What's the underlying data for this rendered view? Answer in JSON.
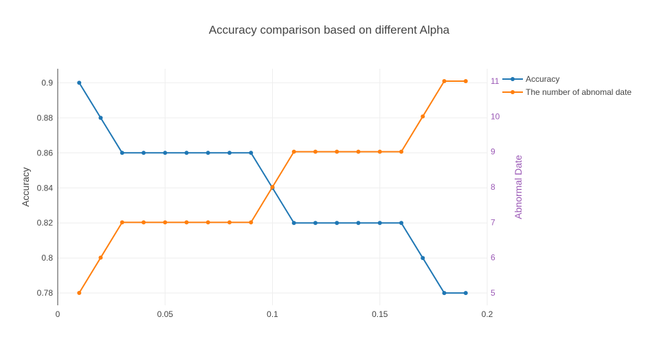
{
  "chart_data": {
    "type": "line",
    "title": "Accuracy comparison based on different Alpha",
    "xlabel": "",
    "xlim": [
      0,
      0.2
    ],
    "x_ticks": [
      "0",
      "0.05",
      "0.1",
      "0.15",
      "0.2"
    ],
    "x": [
      0.01,
      0.02,
      0.03,
      0.04,
      0.05,
      0.06,
      0.07,
      0.08,
      0.09,
      0.1,
      0.11,
      0.12,
      0.13,
      0.14,
      0.15,
      0.16,
      0.17,
      0.18,
      0.19
    ],
    "y_left": {
      "label": "Accuracy",
      "lim": [
        0.773,
        0.908
      ],
      "ticks": [
        "0.78",
        "0.8",
        "0.82",
        "0.84",
        "0.86",
        "0.88",
        "0.9"
      ],
      "tick_values": [
        0.78,
        0.8,
        0.82,
        0.84,
        0.86,
        0.88,
        0.9
      ],
      "color": "#444444"
    },
    "y_right": {
      "label": "Abnormal Date",
      "lim": [
        4.65,
        11.35
      ],
      "ticks": [
        "5",
        "6",
        "7",
        "8",
        "9",
        "10",
        "11"
      ],
      "tick_values": [
        5,
        6,
        7,
        8,
        9,
        10,
        11
      ],
      "color": "#9b59b6"
    },
    "series": [
      {
        "name": "Accuracy",
        "axis": "left",
        "color": "#1f77b4",
        "values": [
          0.9,
          0.88,
          0.86,
          0.86,
          0.86,
          0.86,
          0.86,
          0.86,
          0.86,
          0.84,
          0.82,
          0.82,
          0.82,
          0.82,
          0.82,
          0.82,
          0.8,
          0.78,
          0.78
        ]
      },
      {
        "name": "The number of abnomal date",
        "axis": "right",
        "color": "#ff7f0e",
        "values": [
          5,
          6,
          7,
          7,
          7,
          7,
          7,
          7,
          7,
          8,
          9,
          9,
          9,
          9,
          9,
          9,
          10,
          11,
          11
        ]
      }
    ],
    "grid": true,
    "legend_position": "top-right"
  }
}
